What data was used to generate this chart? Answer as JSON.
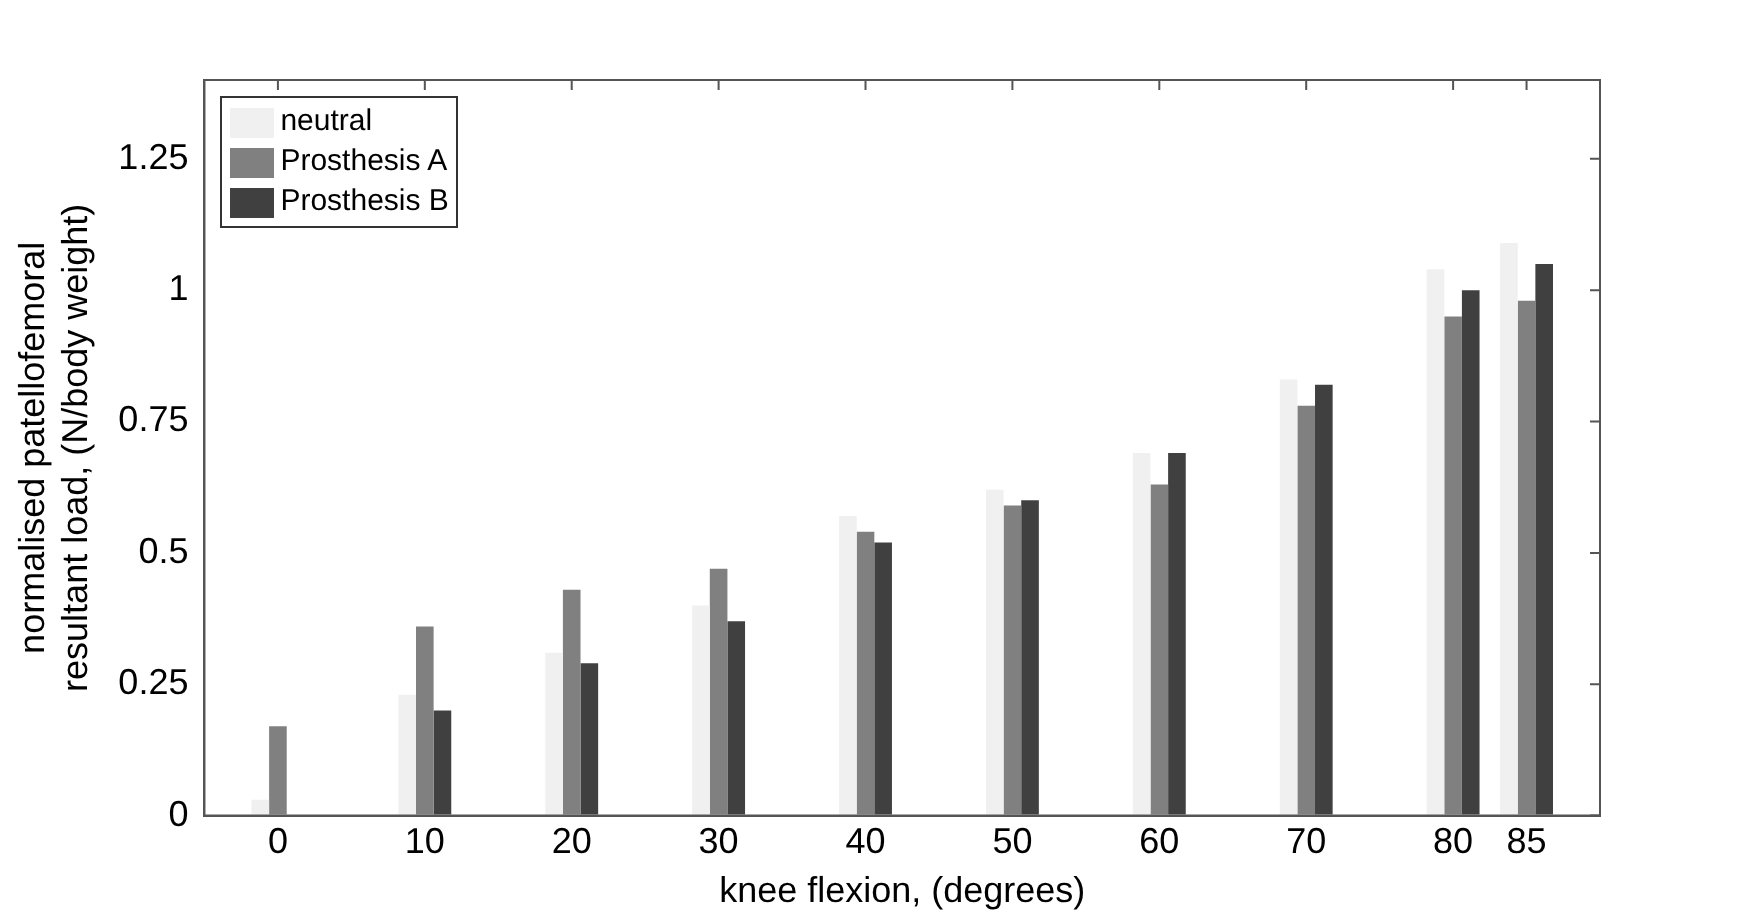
{
  "chart_data": {
    "type": "bar",
    "xlabel": "knee flexion, (degrees)",
    "ylabel": "normalised patellofemoral resultant load, (N/body weight)",
    "x": [
      0,
      10,
      20,
      30,
      40,
      50,
      60,
      70,
      80,
      85
    ],
    "xlim": [
      -5,
      90
    ],
    "xticks": [
      0,
      10,
      20,
      30,
      40,
      50,
      60,
      70,
      80,
      85
    ],
    "ylim": [
      0,
      1.4
    ],
    "yticks": [
      0,
      0.25,
      0.5,
      0.75,
      1,
      1.25
    ],
    "legend": "top left",
    "series": [
      {
        "name": "neutral",
        "color": "#f0f0f0",
        "values": [
          0.03,
          0.23,
          0.31,
          0.4,
          0.57,
          0.62,
          0.69,
          0.83,
          1.04,
          1.09
        ]
      },
      {
        "name": "Prosthesis A",
        "color": "#808080",
        "values": [
          0.17,
          0.36,
          0.43,
          0.47,
          0.54,
          0.59,
          0.63,
          0.78,
          0.95,
          0.98
        ]
      },
      {
        "name": "Prosthesis B",
        "color": "#404040",
        "values": [
          null,
          0.2,
          0.29,
          0.37,
          0.52,
          0.6,
          0.69,
          0.82,
          1.0,
          1.05
        ]
      }
    ]
  }
}
